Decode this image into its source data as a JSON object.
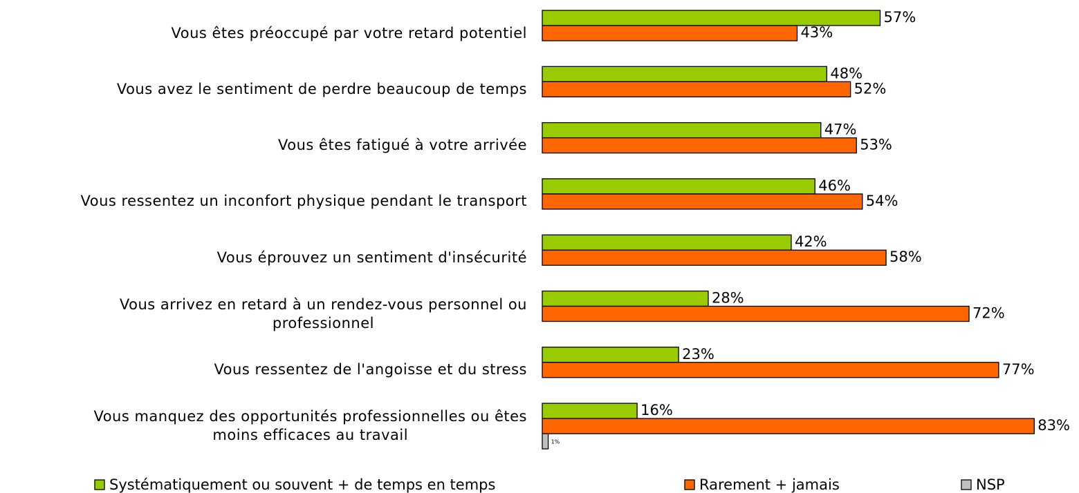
{
  "chart_data": {
    "type": "bar",
    "orientation": "horizontal",
    "categories": [
      "Vous êtes préoccupé par votre retard potentiel",
      "Vous avez le sentiment de perdre beaucoup de temps",
      "Vous êtes fatigué à votre arrivée",
      "Vous ressentez un inconfort physique pendant le transport",
      "Vous éprouvez un sentiment d'insécurité",
      "Vous arrivez en retard à un rendez-vous personnel ou\nprofessionnel",
      "Vous ressentez de l'angoisse et du stress",
      "Vous manquez des opportunités professionnelles ou êtes\nmoins efficaces au travail"
    ],
    "series": [
      {
        "name": "Systématiquement ou souvent + de temps en temps",
        "color": "#99cc00",
        "values": [
          57,
          48,
          47,
          46,
          42,
          28,
          23,
          16
        ],
        "value_labels": [
          "57%",
          "48%",
          "47%",
          "46%",
          "42%",
          "28%",
          "23%",
          "16%"
        ]
      },
      {
        "name": "Rarement + jamais",
        "color": "#ff6600",
        "values": [
          43,
          52,
          53,
          54,
          58,
          72,
          77,
          83
        ],
        "value_labels": [
          "43%",
          "52%",
          "53%",
          "54%",
          "58%",
          "72%",
          "77%",
          "83%"
        ]
      },
      {
        "name": "NSP",
        "color": "#c0c0c0",
        "values": [
          null,
          null,
          null,
          null,
          null,
          null,
          null,
          1
        ],
        "value_labels": [
          null,
          null,
          null,
          null,
          null,
          null,
          null,
          "1%"
        ]
      }
    ],
    "legend": "bottom"
  }
}
